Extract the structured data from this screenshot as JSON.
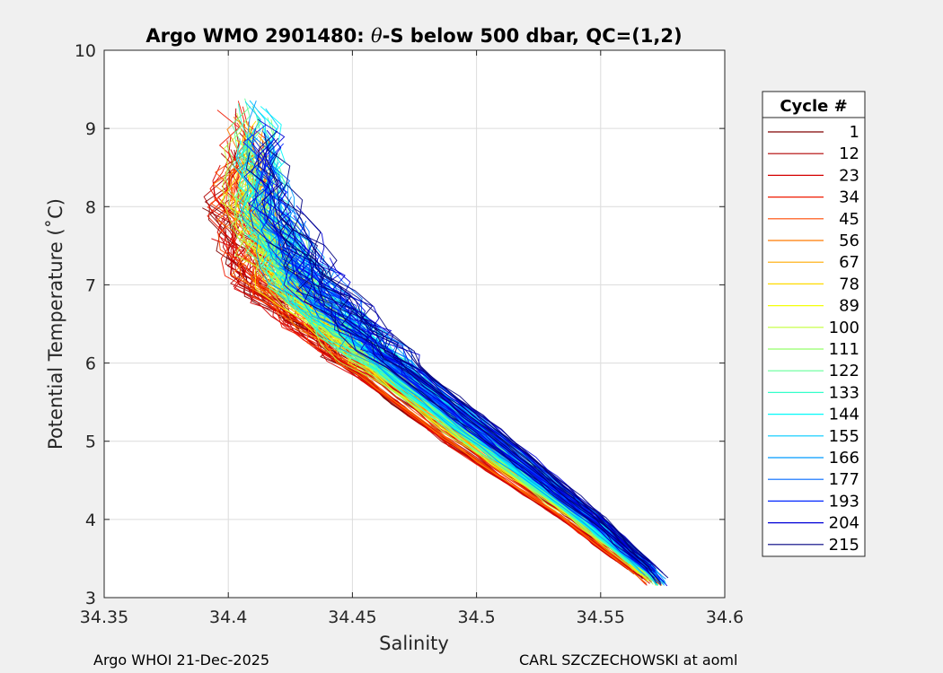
{
  "chart_data": {
    "type": "line",
    "title_prefix": "Argo WMO 2901480: ",
    "title_theta": "θ",
    "title_suffix": "-S below 500 dbar,  QC=(1,2)",
    "xlabel": "Salinity",
    "ylabel": "Potential Temperature (˚C)",
    "xlim": [
      34.35,
      34.6
    ],
    "ylim": [
      3,
      10
    ],
    "xticks": [
      "34.35",
      "34.4",
      "34.45",
      "34.5",
      "34.55",
      "34.6"
    ],
    "yticks": [
      "3",
      "4",
      "5",
      "6",
      "7",
      "8",
      "9",
      "10"
    ],
    "grid": true,
    "legend": {
      "title": "Cycle #",
      "placement": "outside-right",
      "entries": [
        {
          "label": "1",
          "color": "#800000"
        },
        {
          "label": "12",
          "color": "#b10000"
        },
        {
          "label": "23",
          "color": "#d40000"
        },
        {
          "label": "34",
          "color": "#f01a00"
        },
        {
          "label": "45",
          "color": "#ff4a00"
        },
        {
          "label": "56",
          "color": "#ff7a00"
        },
        {
          "label": "67",
          "color": "#ffaa00"
        },
        {
          "label": "78",
          "color": "#ffda00"
        },
        {
          "label": "89",
          "color": "#f4ff0a"
        },
        {
          "label": "100",
          "color": "#c4ff3a"
        },
        {
          "label": "111",
          "color": "#94ff6a"
        },
        {
          "label": "122",
          "color": "#64ff9a"
        },
        {
          "label": "133",
          "color": "#34ffca"
        },
        {
          "label": "144",
          "color": "#04fafa"
        },
        {
          "label": "155",
          "color": "#00caff"
        },
        {
          "label": "166",
          "color": "#009aff"
        },
        {
          "label": "177",
          "color": "#006aff"
        },
        {
          "label": "193",
          "color": "#0026ff"
        },
        {
          "label": "204",
          "color": "#0000d8"
        },
        {
          "label": "215",
          "color": "#000080"
        }
      ]
    },
    "profile_trend": {
      "note": "theta-S envelope: salinity at each potential temperature, approximate",
      "theta": [
        3.2,
        4.0,
        5.0,
        6.0,
        7.0,
        8.0,
        8.7
      ],
      "salinity_fresh_edge": [
        34.568,
        34.535,
        34.487,
        34.445,
        34.405,
        34.395,
        34.4
      ],
      "salinity_salty_edge": [
        34.578,
        34.552,
        34.515,
        34.475,
        34.445,
        34.425,
        34.42
      ]
    }
  },
  "footer": {
    "left": "Argo WHOI 21-Dec-2025",
    "right": "CARL SZCZECHOWSKI at aoml"
  }
}
